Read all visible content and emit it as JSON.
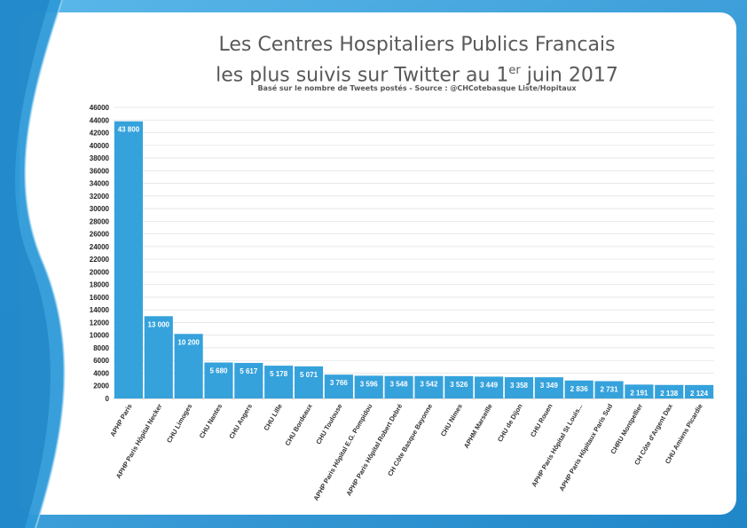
{
  "colors": {
    "frame": "#2e9ad8",
    "panel": "#ffffff",
    "bar": "#35a2dc",
    "grid": "#e3e3e3"
  },
  "chart_data": {
    "type": "bar",
    "title_line1": "Les Centres Hospitaliers Publics Francais",
    "title_line2": "les plus suivis sur Twitter au 1",
    "title_sup": "er",
    "title_line2_end": " juin 2017",
    "subtitle": "Basé sur le nombre de Tweets postés - Source : @CHCotebasque Liste/Hopitaux",
    "xlabel": "",
    "ylabel": "",
    "ylim": [
      0,
      46000
    ],
    "ytick_step": 2000,
    "grid": true,
    "legend": "none",
    "categories": [
      "APHP Paris",
      "APHP Paris Hôpital Necker",
      "CHU Limoges",
      "CHU Nantes",
      "CHU Angers",
      "CHU Lille",
      "CHU Bordeaux",
      "CHU Toulouse",
      "APHP Paris  Hôpital E.G. Pompidou",
      "APHP Paris Hôpital Robert Debré",
      "CH Côte Basque Bayonne",
      "CHU Nimes",
      "APHM Marseille",
      "CHU de Dijon",
      "CHU Rouen",
      "APHP Paris Hôpital St Louis...",
      "APHP Paris Hôpitaux Paris Sud",
      "CHRU Montpellier",
      "CH Côte d'Argent Dax",
      "CHU Amiens Picardie"
    ],
    "values": [
      43800,
      13000,
      10200,
      5680,
      5617,
      5178,
      5071,
      3766,
      3596,
      3548,
      3542,
      3526,
      3449,
      3358,
      3349,
      2836,
      2731,
      2191,
      2138,
      2124
    ],
    "value_labels": [
      "43 800",
      "13 000",
      "10 200",
      "5 680",
      "5 617",
      "5 178",
      "5 071",
      "3 766",
      "3 596",
      "3 548",
      "3 542",
      "3 526",
      "3 449",
      "3 358",
      "3 349",
      "2 836",
      "2 731",
      "2 191",
      "2 138",
      "2 124"
    ]
  }
}
